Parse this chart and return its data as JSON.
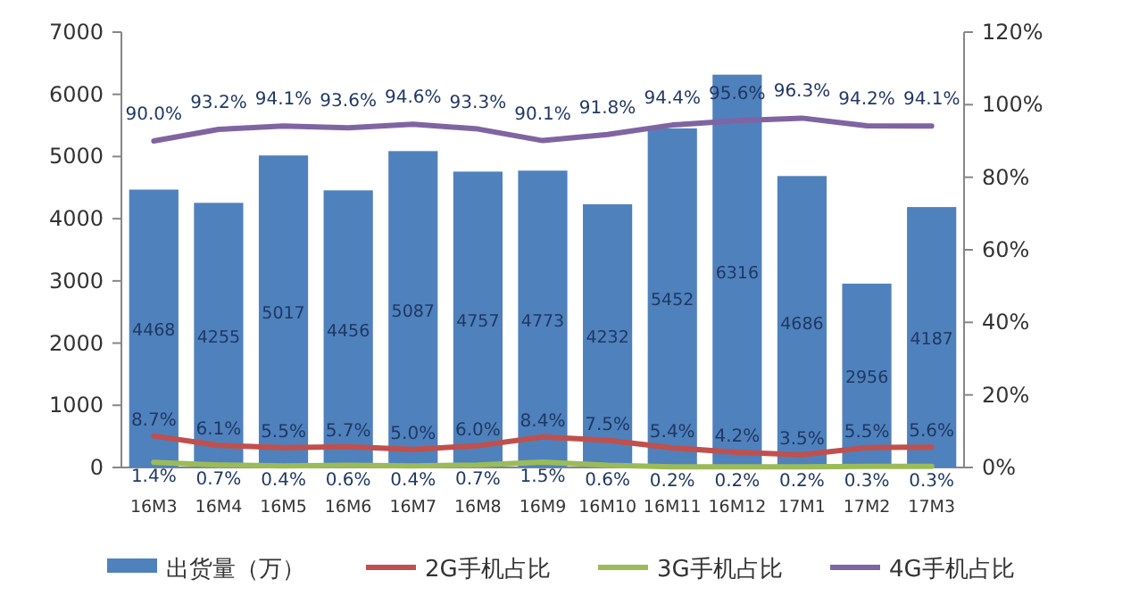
{
  "chart_data": {
    "type": "bar",
    "categories": [
      "16M3",
      "16M4",
      "16M5",
      "16M6",
      "16M7",
      "16M8",
      "16M9",
      "16M10",
      "16M11",
      "16M12",
      "17M1",
      "17M2",
      "17M3"
    ],
    "series": [
      {
        "name": "出货量（万）",
        "color": "#4f81bd",
        "values": [
          4468,
          4255,
          5017,
          4456,
          5087,
          4757,
          4773,
          4232,
          5452,
          6316,
          4686,
          2956,
          4187
        ],
        "value_labels": [
          "4468",
          "4255",
          "5017",
          "4456",
          "5087",
          "4757",
          "4773",
          "4232",
          "5452",
          "6316",
          "4686",
          "2956",
          "4187"
        ]
      },
      {
        "name": "2G手机占比",
        "type": "line",
        "axis": "y2",
        "color": "#c0504d",
        "values": [
          8.7,
          6.1,
          5.5,
          5.7,
          5.0,
          6.0,
          8.4,
          7.5,
          5.4,
          4.2,
          3.5,
          5.5,
          5.6
        ],
        "value_labels": [
          "8.7%",
          "6.1%",
          "5.5%",
          "5.7%",
          "5.0%",
          "6.0%",
          "8.4%",
          "7.5%",
          "5.4%",
          "4.2%",
          "3.5%",
          "5.5%",
          "5.6%"
        ]
      },
      {
        "name": "3G手机占比",
        "type": "line",
        "axis": "y2",
        "color": "#9bbb59",
        "values": [
          1.4,
          0.7,
          0.4,
          0.6,
          0.4,
          0.7,
          1.5,
          0.6,
          0.2,
          0.2,
          0.2,
          0.3,
          0.3
        ],
        "value_labels": [
          "1.4%",
          "0.7%",
          "0.4%",
          "0.6%",
          "0.4%",
          "0.7%",
          "1.5%",
          "0.6%",
          "0.2%",
          "0.2%",
          "0.2%",
          "0.3%",
          "0.3%"
        ]
      },
      {
        "name": "4G手机占比",
        "type": "line",
        "axis": "y2",
        "color": "#8064a2",
        "values": [
          90.0,
          93.2,
          94.1,
          93.6,
          94.6,
          93.3,
          90.1,
          91.8,
          94.4,
          95.6,
          96.3,
          94.2,
          94.1
        ],
        "value_labels": [
          "90.0%",
          "93.2%",
          "94.1%",
          "93.6%",
          "94.6%",
          "93.3%",
          "90.1%",
          "91.8%",
          "94.4%",
          "95.6%",
          "96.3%",
          "94.2%",
          "94.1%"
        ]
      }
    ],
    "ylim": [
      0,
      7000
    ],
    "yticks": [
      0,
      1000,
      2000,
      3000,
      4000,
      5000,
      6000,
      7000
    ],
    "y2lim": [
      0,
      120
    ],
    "y2ticks": [
      {
        "value": 0,
        "label": "0%"
      },
      {
        "value": 20,
        "label": "20%"
      },
      {
        "value": 40,
        "label": "40%"
      },
      {
        "value": 60,
        "label": "60%"
      },
      {
        "value": 80,
        "label": "80%"
      },
      {
        "value": 100,
        "label": "100%"
      },
      {
        "value": 120,
        "label": "120%"
      }
    ],
    "legend": "bottom"
  }
}
